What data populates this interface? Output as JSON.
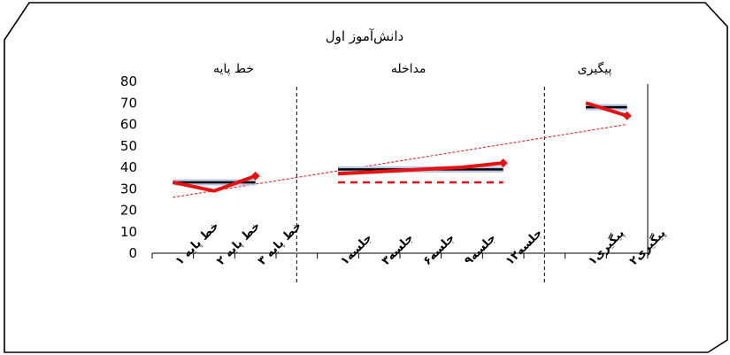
{
  "chart_data": {
    "type": "line",
    "title": "دانش‌آموز اول",
    "xlabel": "",
    "ylabel": "",
    "ylim": [
      0,
      80
    ],
    "yticks": [
      0,
      10,
      20,
      30,
      40,
      50,
      60,
      70,
      80
    ],
    "grid": false,
    "legend": "none",
    "phases": [
      {
        "label": "خط پایه",
        "categories": [
          "خط پایه ۱",
          "خط پایه ۲",
          "خط پایه ۳"
        ]
      },
      {
        "label": "مداخله",
        "categories": [
          "جلسه۱",
          "جلسه۳",
          "جلسه۶",
          "جلسه۹",
          "جلسه۱۲"
        ]
      },
      {
        "label": "پیگیری",
        "categories": [
          "پیگیری۱",
          "پیگیری۲"
        ]
      }
    ],
    "series": [
      {
        "phase": 0,
        "style": "data",
        "values": [
          33,
          29,
          36
        ]
      },
      {
        "phase": 1,
        "style": "data",
        "values": [
          37,
          38,
          39,
          40,
          42
        ]
      },
      {
        "phase": 2,
        "style": "data",
        "values": [
          70,
          64
        ]
      },
      {
        "phase": 0,
        "style": "mean",
        "values": [
          33,
          33,
          33
        ]
      },
      {
        "phase": 1,
        "style": "mean",
        "values": [
          39,
          39,
          39,
          39,
          39
        ]
      },
      {
        "phase": 2,
        "style": "mean",
        "values": [
          68,
          68
        ]
      },
      {
        "phase": 1,
        "style": "baseline-mean",
        "values": [
          33,
          33,
          33,
          33,
          33
        ]
      }
    ],
    "trend": {
      "start": 26,
      "end": 60
    },
    "colors": {
      "data": "#e81010",
      "mean": "#000000",
      "mean_halo": "#b7c7e4",
      "trend": "#e81010",
      "frame": "#000000"
    }
  }
}
